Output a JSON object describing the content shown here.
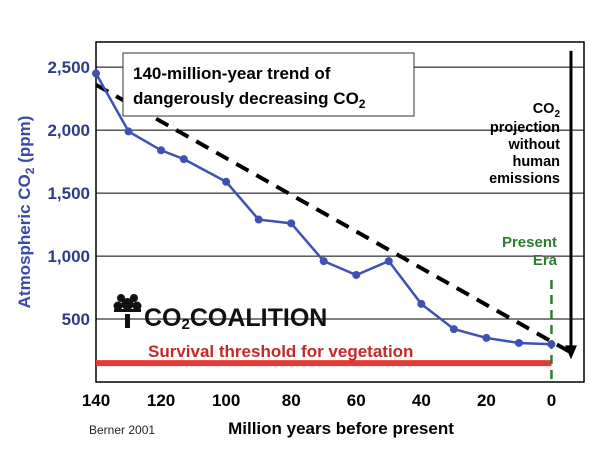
{
  "chart_data": {
    "type": "line",
    "title_line1": "140-million-year trend of",
    "title_line2_main": "dangerously decreasing CO",
    "title_line2_sub": "2",
    "xlabel": "Million years before present",
    "ylabel_main": "Atmospheric CO",
    "ylabel_sub": "2",
    "ylabel_unit": " (ppm)",
    "source": "Berner 2001",
    "xlim": [
      140,
      -10
    ],
    "ylim": [
      0,
      2700
    ],
    "x_ticks": [
      140,
      120,
      100,
      80,
      60,
      40,
      20,
      0
    ],
    "x_tick_labels": [
      "140",
      "120",
      "100",
      "80",
      "60",
      "40",
      "20",
      "0"
    ],
    "y_ticks": [
      500,
      1000,
      1500,
      2000,
      2500
    ],
    "y_tick_labels": [
      "500",
      "1,000",
      "1,500",
      "2,000",
      "2,500"
    ],
    "grid": "horizontal",
    "series": [
      {
        "x": [
          140,
          130,
          120,
          113,
          100,
          90,
          80,
          70,
          60,
          50,
          40,
          30,
          20,
          10,
          0
        ],
        "y": [
          2450,
          1990,
          1840,
          1770,
          1590,
          1290,
          1260,
          960,
          850,
          960,
          620,
          420,
          350,
          310,
          300
        ],
        "color": "#3f51b5"
      }
    ],
    "trend_line": {
      "x": [
        140,
        -7
      ],
      "y": [
        2360,
        220
      ],
      "color": "#000000"
    },
    "survival_threshold": {
      "value": 150,
      "label": "Survival threshold for vegetation",
      "color": "#e53935"
    },
    "present_era": {
      "x": 0,
      "label_line1": "Present",
      "label_line2": "Era",
      "color": "#2e7d32"
    },
    "projection": {
      "label_line1_main": "CO",
      "label_line1_sub": "2",
      "label_lines": [
        "projection",
        "without",
        "human",
        "emissions"
      ],
      "arrow_x": -6,
      "arrow_from_y": 2630,
      "arrow_to_y": 180
    },
    "logo": {
      "text_main": "CO",
      "text_sub": "2",
      "text_rest": "COALITION"
    }
  }
}
